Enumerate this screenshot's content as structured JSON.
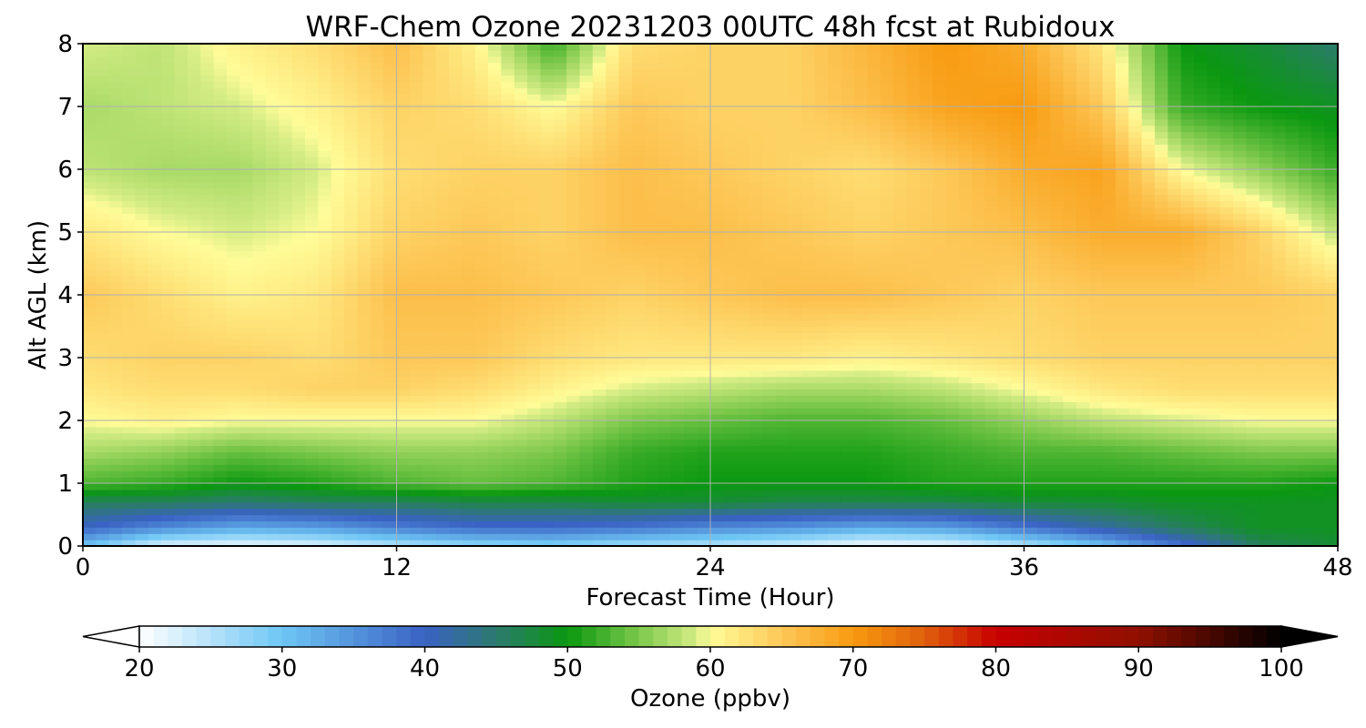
{
  "chart_data": {
    "type": "heatmap",
    "title": "WRF-Chem Ozone  20231203 00UTC 48h fcst at Rubidoux",
    "xlabel": "Forecast Time (Hour)",
    "ylabel": "Alt AGL (km)",
    "xlim": [
      0,
      48
    ],
    "ylim": [
      0,
      8
    ],
    "xticks": [
      0,
      12,
      24,
      36,
      48
    ],
    "yticks": [
      0,
      1,
      2,
      3,
      4,
      5,
      6,
      7,
      8
    ],
    "grid": true,
    "colorbar": {
      "label": "Ozone  (ppbv)",
      "min": 20,
      "max": 100,
      "ticks": [
        20,
        30,
        40,
        50,
        60,
        70,
        80,
        90,
        100
      ],
      "extend": "both",
      "stops": [
        {
          "v": 20,
          "c": "#ffffff"
        },
        {
          "v": 30,
          "c": "#6ec6f4"
        },
        {
          "v": 40,
          "c": "#3a62c4"
        },
        {
          "v": 45,
          "c": "#2c7a6e"
        },
        {
          "v": 50,
          "c": "#0a9810"
        },
        {
          "v": 55,
          "c": "#7cc84a"
        },
        {
          "v": 59,
          "c": "#d4ec84"
        },
        {
          "v": 60,
          "c": "#fffc98"
        },
        {
          "v": 65,
          "c": "#fdc858"
        },
        {
          "v": 70,
          "c": "#f89a10"
        },
        {
          "v": 75,
          "c": "#e0600c"
        },
        {
          "v": 80,
          "c": "#c80000"
        },
        {
          "v": 90,
          "c": "#901000"
        },
        {
          "v": 100,
          "c": "#000000"
        }
      ]
    },
    "grid_hours": [
      0,
      3,
      6,
      9,
      12,
      15,
      18,
      21,
      24,
      27,
      30,
      33,
      36,
      39,
      42,
      45,
      48
    ],
    "grid_alt_km": [
      0,
      0.3,
      0.7,
      1.0,
      1.5,
      2.0,
      2.5,
      3.0,
      4.0,
      5.0,
      6.0,
      7.0,
      8.0
    ],
    "ozone_ppbv": [
      [
        30,
        22,
        21,
        22,
        25,
        27,
        28,
        26,
        25,
        23,
        20,
        21,
        25,
        30,
        38,
        46,
        48
      ],
      [
        40,
        36,
        33,
        34,
        37,
        39,
        39,
        38,
        36,
        35,
        33,
        34,
        38,
        42,
        46,
        49,
        49
      ],
      [
        46,
        46,
        45,
        46,
        46,
        47,
        47,
        48,
        48,
        47,
        47,
        47,
        48,
        48,
        49,
        49,
        49
      ],
      [
        53,
        52,
        50,
        51,
        53,
        54,
        53,
        51,
        50,
        50,
        50,
        51,
        51,
        51,
        51,
        51,
        50
      ],
      [
        57,
        56,
        54,
        55,
        56,
        56,
        55,
        52,
        51,
        51,
        51,
        52,
        53,
        53,
        54,
        55,
        55
      ],
      [
        60,
        61,
        60,
        60,
        60,
        60,
        58,
        55,
        54,
        53,
        53,
        54,
        56,
        58,
        59,
        60,
        60
      ],
      [
        62,
        63,
        63,
        64,
        64,
        63,
        61,
        59,
        58,
        57,
        57,
        58,
        60,
        62,
        63,
        63,
        63
      ],
      [
        63,
        64,
        64,
        63,
        65,
        65,
        63,
        62,
        62,
        62,
        61,
        62,
        63,
        64,
        64,
        64,
        64
      ],
      [
        65,
        63,
        61,
        62,
        66,
        66,
        65,
        64,
        65,
        66,
        66,
        65,
        64,
        65,
        65,
        65,
        64
      ],
      [
        62,
        60,
        59,
        60,
        64,
        65,
        64,
        66,
        66,
        65,
        64,
        65,
        66,
        68,
        68,
        64,
        58
      ],
      [
        58,
        57,
        57,
        59,
        63,
        64,
        64,
        66,
        65,
        64,
        63,
        65,
        68,
        69,
        60,
        56,
        52
      ],
      [
        57,
        58,
        59,
        61,
        64,
        63,
        60,
        65,
        64,
        64,
        66,
        69,
        70,
        65,
        52,
        50,
        49
      ],
      [
        59,
        58,
        61,
        63,
        66,
        61,
        52,
        63,
        64,
        64,
        67,
        70,
        68,
        62,
        50,
        48,
        45
      ]
    ]
  }
}
